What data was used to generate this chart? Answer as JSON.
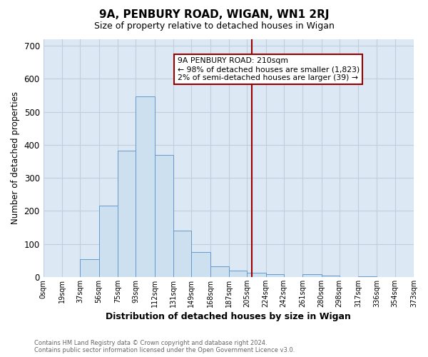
{
  "title": "9A, PENBURY ROAD, WIGAN, WN1 2RJ",
  "subtitle": "Size of property relative to detached houses in Wigan",
  "xlabel": "Distribution of detached houses by size in Wigan",
  "ylabel": "Number of detached properties",
  "bar_edges": [
    0,
    19,
    37,
    56,
    75,
    93,
    112,
    131,
    149,
    168,
    187,
    205,
    224,
    242,
    261,
    280,
    298,
    317,
    336,
    354,
    373
  ],
  "bar_heights": [
    0,
    0,
    53,
    215,
    382,
    547,
    370,
    140,
    75,
    33,
    20,
    13,
    8,
    0,
    8,
    5,
    0,
    3,
    0,
    0
  ],
  "bar_color": "#cce0f0",
  "bar_edgecolor": "#6699cc",
  "grid_color": "#c0cfe0",
  "plot_bg_color": "#dce8f4",
  "fig_bg_color": "#ffffff",
  "vline_x": 210,
  "vline_color": "#990000",
  "annotation_title": "9A PENBURY ROAD: 210sqm",
  "annotation_line1": "← 98% of detached houses are smaller (1,823)",
  "annotation_line2": "2% of semi-detached houses are larger (39) →",
  "ylim": [
    0,
    720
  ],
  "yticks": [
    0,
    100,
    200,
    300,
    400,
    500,
    600,
    700
  ],
  "tick_labels": [
    "0sqm",
    "19sqm",
    "37sqm",
    "56sqm",
    "75sqm",
    "93sqm",
    "112sqm",
    "131sqm",
    "149sqm",
    "168sqm",
    "187sqm",
    "205sqm",
    "224sqm",
    "242sqm",
    "261sqm",
    "280sqm",
    "298sqm",
    "317sqm",
    "336sqm",
    "354sqm",
    "373sqm"
  ],
  "footer_line1": "Contains HM Land Registry data © Crown copyright and database right 2024.",
  "footer_line2": "Contains public sector information licensed under the Open Government Licence v3.0."
}
